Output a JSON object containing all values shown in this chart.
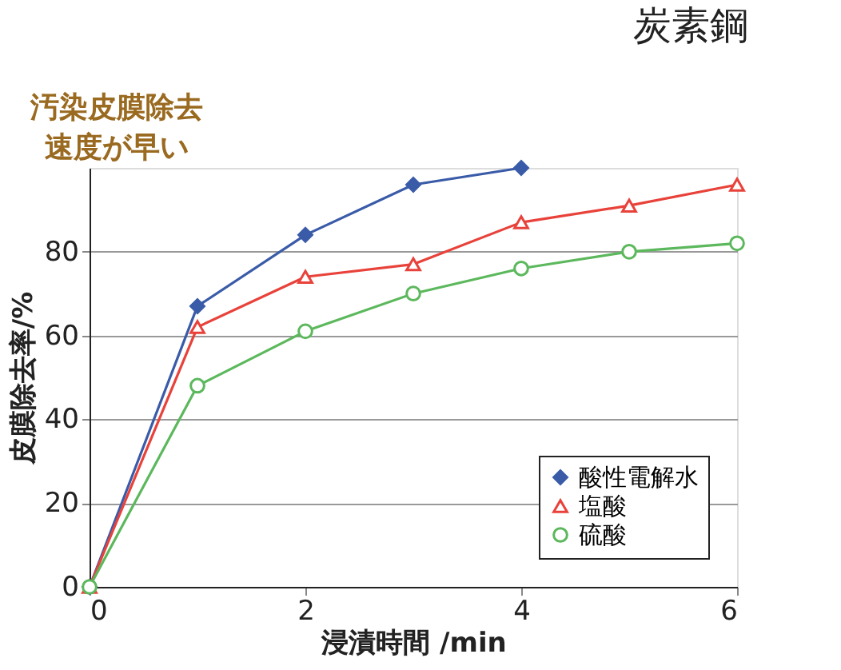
{
  "chart_data": {
    "type": "line",
    "title": "炭素鋼",
    "xlabel": "浸漬時間 /min",
    "ylabel": "皮膜除去率/%",
    "x": [
      0,
      1,
      2,
      3,
      4,
      5,
      6
    ],
    "series": [
      {
        "name": "酸性電解水",
        "color": "#3a5ba8",
        "marker": "diamond",
        "values": [
          0,
          67,
          84,
          96,
          100,
          null,
          null
        ]
      },
      {
        "name": "塩酸",
        "color": "#e8423a",
        "marker": "triangle",
        "values": [
          0,
          62,
          74,
          77,
          87,
          91,
          96
        ]
      },
      {
        "name": "硫酸",
        "color": "#5cb85c",
        "marker": "circle",
        "values": [
          0,
          48,
          61,
          70,
          76,
          80,
          82
        ]
      }
    ],
    "xlim": [
      0,
      6
    ],
    "xticks": [
      0,
      2,
      4,
      6
    ],
    "ylim": [
      0,
      100
    ],
    "yticks": [
      0,
      20,
      40,
      60,
      80
    ],
    "grid": "y",
    "legend": "bottom right",
    "line_style": "solid",
    "annotations": [
      "汚染皮膜除去",
      "速度が早い"
    ]
  }
}
